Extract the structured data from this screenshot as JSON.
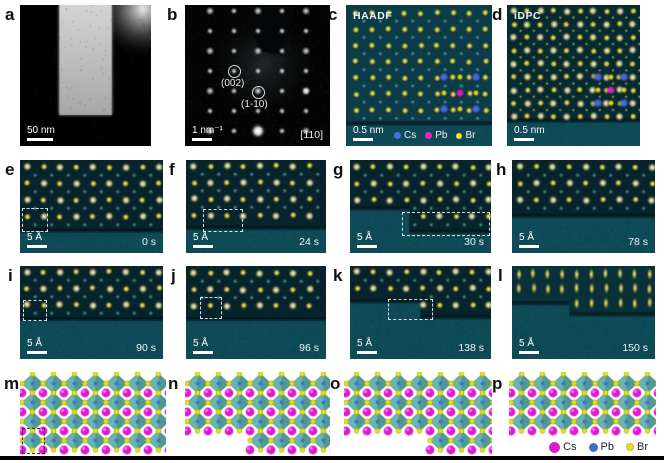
{
  "colors": {
    "overlay_cs_blue": "#4a6cf0",
    "overlay_pb_magenta": "#ee22cc",
    "overlay_br_yellow": "#f2e71e",
    "model_cs_magenta": "#e018d0",
    "model_pb_blue": "#3a6ce0",
    "model_br_yellow": "#e6e414",
    "octahedron_teal": "#68b6ac",
    "micrograph_vacuum_teal": "#0f4a57",
    "dot_bright_yellow": "#ffe73a"
  },
  "panels": {
    "a": {
      "label": "a",
      "scalebar": "50 nm"
    },
    "b": {
      "label": "b",
      "scalebar": "1 nm⁻¹",
      "reflection_1": "(002)",
      "reflection_2": "(1-10)",
      "zone_axis": "[110]"
    },
    "c": {
      "label": "c",
      "title": "HAADF",
      "scalebar": "0.5 nm",
      "legend": [
        {
          "name": "Cs",
          "color": "#4a6cf0"
        },
        {
          "name": "Pb",
          "color": "#ee22cc"
        },
        {
          "name": "Br",
          "color": "#f2e71e"
        }
      ]
    },
    "d": {
      "label": "d",
      "title": "iDPC",
      "scalebar": "0.5 nm"
    },
    "e": {
      "label": "e",
      "scalebar": "5 Å",
      "time": "0 s"
    },
    "f": {
      "label": "f",
      "scalebar": "5 Å",
      "time": "24 s"
    },
    "g": {
      "label": "g",
      "scalebar": "5 Å",
      "time": "30 s"
    },
    "h": {
      "label": "h",
      "scalebar": "5 Å",
      "time": "78 s"
    },
    "i": {
      "label": "i",
      "scalebar": "5 Å",
      "time": "90 s"
    },
    "j": {
      "label": "j",
      "scalebar": "5 Å",
      "time": "96 s"
    },
    "k": {
      "label": "k",
      "scalebar": "5 Å",
      "time": "138 s"
    },
    "l": {
      "label": "l",
      "scalebar": "5 Å",
      "time": "150 s"
    },
    "m": {
      "label": "m"
    },
    "n": {
      "label": "n"
    },
    "o": {
      "label": "o"
    },
    "p": {
      "label": "p",
      "legend": [
        {
          "name": "Cs",
          "color": "#e018d0"
        },
        {
          "name": "Pb",
          "color": "#3a6ce0"
        },
        {
          "name": "Br",
          "color": "#e6e414"
        }
      ]
    }
  }
}
